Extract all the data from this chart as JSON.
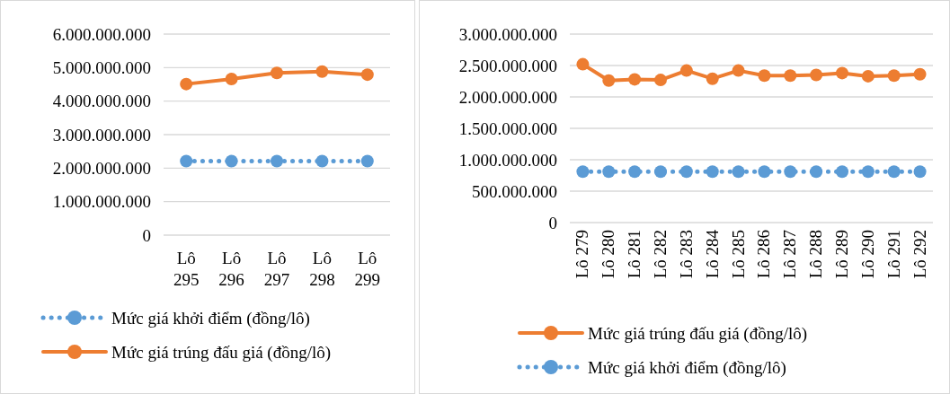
{
  "chart_data": [
    {
      "type": "line",
      "categories": [
        "Lô 295",
        "Lô 296",
        "Lô 297",
        "Lô 298",
        "Lô 299"
      ],
      "ylim": [
        0,
        6000000000
      ],
      "yticks": [
        {
          "value": 0,
          "label": "0"
        },
        {
          "value": 1000000000,
          "label": "1.000.000.000"
        },
        {
          "value": 2000000000,
          "label": "2.000.000.000"
        },
        {
          "value": 3000000000,
          "label": "3.000.000.000"
        },
        {
          "value": 4000000000,
          "label": "4.000.000.000"
        },
        {
          "value": 5000000000,
          "label": "5.000.000.000"
        },
        {
          "value": 6000000000,
          "label": "6.000.000.000"
        }
      ],
      "grid": "y",
      "legend": "bottom",
      "marker": "circle",
      "series": [
        {
          "name": "Mức giá khởi điểm (đồng/lô)",
          "color": "#5b9bd5",
          "line_style": "dotted",
          "values": [
            2210000000,
            2210000000,
            2210000000,
            2210000000,
            2210000000
          ]
        },
        {
          "name": "Mức giá trúng đấu giá (đồng/lô)",
          "color": "#ed7d31",
          "line_style": "solid",
          "values": [
            4510000000,
            4660000000,
            4840000000,
            4880000000,
            4790000000
          ]
        }
      ]
    },
    {
      "type": "line",
      "categories": [
        "Lô 279",
        "Lô 280",
        "Lô 281",
        "Lô 282",
        "Lô 283",
        "Lô 284",
        "Lô 285",
        "Lô 286",
        "Lô 287",
        "Lô 288",
        "Lô 289",
        "Lô 290",
        "Lô 291",
        "Lô 292"
      ],
      "ylim": [
        0,
        3000000000
      ],
      "yticks": [
        {
          "value": 0,
          "label": "0"
        },
        {
          "value": 500000000,
          "label": "500.000.000"
        },
        {
          "value": 1000000000,
          "label": "1.000.000.000"
        },
        {
          "value": 1500000000,
          "label": "1.500.000.000"
        },
        {
          "value": 2000000000,
          "label": "2.000.000.000"
        },
        {
          "value": 2500000000,
          "label": "2.500.000.000"
        },
        {
          "value": 3000000000,
          "label": "3.000.000.000"
        }
      ],
      "grid": "y",
      "legend": "bottom",
      "marker": "circle",
      "series": [
        {
          "name": "Mức giá trúng đấu giá (đồng/lô)",
          "color": "#ed7d31",
          "line_style": "solid",
          "values": [
            2520000000,
            2260000000,
            2280000000,
            2270000000,
            2420000000,
            2290000000,
            2420000000,
            2340000000,
            2340000000,
            2350000000,
            2380000000,
            2330000000,
            2340000000,
            2360000000
          ]
        },
        {
          "name": "Mức giá khởi điểm (đồng/lô)",
          "color": "#5b9bd5",
          "line_style": "dotted",
          "values": [
            810000000,
            810000000,
            810000000,
            810000000,
            810000000,
            810000000,
            810000000,
            810000000,
            810000000,
            810000000,
            810000000,
            810000000,
            810000000,
            810000000
          ]
        }
      ]
    }
  ]
}
